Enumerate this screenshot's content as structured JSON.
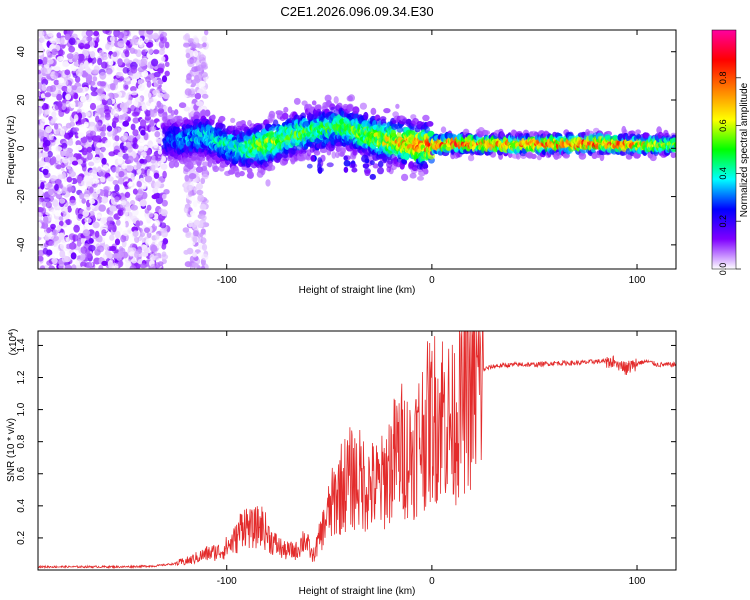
{
  "chart_data": [
    {
      "type": "heatmap",
      "title": "C2E1.2026.096.09.34.E30",
      "xlabel": "Height of straight line (km)",
      "ylabel": "Frequency (Hz)",
      "xlim": [
        -192,
        119
      ],
      "ylim": [
        -50,
        49
      ],
      "xticks": [
        -100,
        0,
        100
      ],
      "xtick_labels": [
        "-100",
        "0",
        "100"
      ],
      "yticks": [
        -40,
        -20,
        0,
        20,
        40
      ],
      "ytick_labels": [
        "-40",
        "-20",
        "0",
        "20",
        "40"
      ],
      "colorbar": {
        "label": "Normalized spectral amplitude",
        "range": [
          0,
          1
        ],
        "ticks": [
          0,
          0.2,
          0.4,
          0.6,
          0.8
        ],
        "tick_labels": [
          "0.0",
          "0.2",
          "0.4",
          "0.6",
          "0.8"
        ],
        "colors": [
          "#ffffff",
          "#7f00ff",
          "#0000ff",
          "#00ffff",
          "#00ff00",
          "#ffff00",
          "#ff8000",
          "#ff0000",
          "#ff00a0"
        ]
      },
      "regions": [
        {
          "name": "noise-scatter",
          "x": [
            -192,
            -129
          ],
          "y": [
            -50,
            49
          ],
          "amplitude": [
            0.0,
            0.15
          ]
        },
        {
          "name": "secondary-scatter",
          "x": [
            -120,
            -110
          ],
          "y": [
            -50,
            49
          ],
          "amplitude": [
            0.0,
            0.08
          ]
        },
        {
          "name": "signal-band",
          "x": [
            -130,
            119
          ],
          "center_freq": [
            3.5,
            3.5,
            5.0,
            0.0,
            1.5,
            5.0,
            9.0,
            4.0,
            1.0,
            2.0,
            1.5,
            2.0,
            1.5,
            1.5
          ],
          "center_x": [
            -130,
            -120,
            -110,
            -95,
            -80,
            -70,
            -45,
            -25,
            -5,
            10,
            40,
            80,
            95,
            119
          ],
          "peak_amplitude": [
            0.3,
            0.4,
            0.45,
            0.5,
            0.7,
            0.6,
            0.55,
            0.7,
            0.9,
            0.95,
            0.85,
            0.95,
            0.9,
            0.6
          ]
        }
      ]
    },
    {
      "type": "line",
      "xlabel": "Height of straight line (km)",
      "ylabel": "SNR (10 * v/v)",
      "y_multiplier": "(x10",
      "y_multiplier_exp": "4",
      "y_multiplier_close": ")",
      "xlim": [
        -192,
        119
      ],
      "ylim": [
        0,
        1.49
      ],
      "xticks": [
        -100,
        0,
        100
      ],
      "xtick_labels": [
        "-100",
        "0",
        "100"
      ],
      "yticks": [
        0.2,
        0.4,
        0.6,
        0.8,
        1.0,
        1.2,
        1.4
      ],
      "ytick_labels": [
        "0.2",
        "0.4",
        "0.6",
        "0.8",
        "1.0",
        "1.2",
        "1.4"
      ],
      "color": "#e32b2b",
      "series": [
        {
          "name": "SNR",
          "x": [
            -192,
            -170,
            -150,
            -135,
            -125,
            -118,
            -110,
            -102,
            -95,
            -92,
            -88,
            -83,
            -78,
            -72,
            -66,
            -62,
            -58,
            -52,
            -48,
            -44,
            -40,
            -36,
            -30,
            -25,
            -20,
            -15,
            -10,
            -5,
            0,
            5,
            10,
            15,
            20,
            25,
            30,
            40,
            50,
            60,
            70,
            80,
            85,
            90,
            95,
            100,
            105,
            110,
            119
          ],
          "y": [
            0.02,
            0.02,
            0.02,
            0.025,
            0.04,
            0.06,
            0.1,
            0.12,
            0.2,
            0.3,
            0.25,
            0.28,
            0.18,
            0.12,
            0.12,
            0.2,
            0.08,
            0.3,
            0.45,
            0.55,
            0.6,
            0.6,
            0.55,
            0.55,
            0.7,
            0.8,
            0.75,
            0.9,
            1.0,
            1.05,
            0.95,
            1.15,
            1.2,
            1.25,
            1.27,
            1.28,
            1.28,
            1.29,
            1.29,
            1.3,
            1.3,
            1.3,
            1.26,
            1.29,
            1.3,
            1.28,
            1.28
          ]
        }
      ]
    }
  ]
}
